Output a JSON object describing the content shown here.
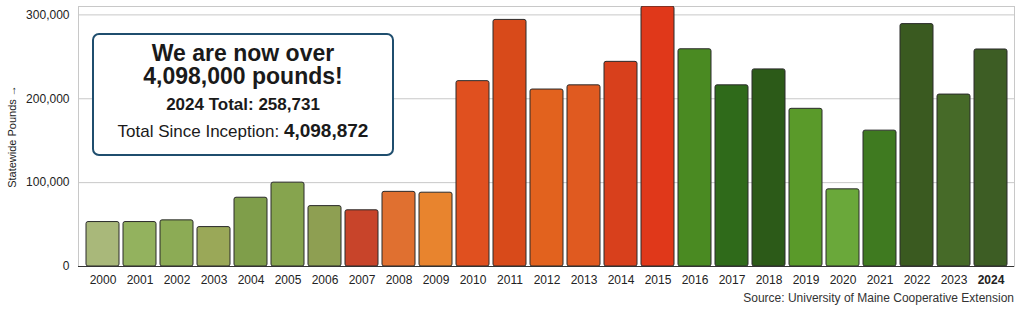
{
  "chart_data": {
    "type": "bar",
    "y_label": "Statewide Pounds",
    "caption": "Source: University of Maine Cooperative Extension",
    "annotation": {
      "headline": [
        "We are now over",
        "4,098,000 pounds!"
      ],
      "detail": "2024 Total: 258,731",
      "inception": [
        "Total Since Inception:",
        "4,098,872"
      ]
    },
    "categories": [
      "2000",
      "2001",
      "2002",
      "2003",
      "2004",
      "2005",
      "2006",
      "2007",
      "2008",
      "2009",
      "2010",
      "2011",
      "2012",
      "2013",
      "2014",
      "2015",
      "2016",
      "2017",
      "2018",
      "2019",
      "2020",
      "2021",
      "2022",
      "2023",
      "2024"
    ],
    "values": [
      53000,
      53000,
      55000,
      47000,
      82000,
      100000,
      72000,
      67000,
      89000,
      88000,
      221000,
      294000,
      211000,
      216000,
      244000,
      310000,
      259000,
      216000,
      235000,
      188000,
      92000,
      162000,
      289000,
      205000,
      258731
    ],
    "colors": [
      "#a9b87a",
      "#93b25e",
      "#8cab55",
      "#9aa858",
      "#7f9e4a",
      "#86a44e",
      "#8e9f52",
      "#c8442a",
      "#e07030",
      "#e8842e",
      "#e0501f",
      "#d84a1a",
      "#e2621e",
      "#e05a20",
      "#d8401c",
      "#e0381a",
      "#4a8a22",
      "#2f6a1a",
      "#2c5a18",
      "#5a9a2a",
      "#6aa83a",
      "#3f7a20",
      "#3a5a20",
      "#466a28",
      "#3d5d24"
    ],
    "ylim": [
      0,
      310000
    ],
    "yticks": [
      0,
      {
        "value": 100000,
        "label": "100,000"
      },
      {
        "value": 200000,
        "label": "200,000"
      },
      {
        "value": 300000,
        "label": "300,000"
      }
    ],
    "grid": true
  }
}
